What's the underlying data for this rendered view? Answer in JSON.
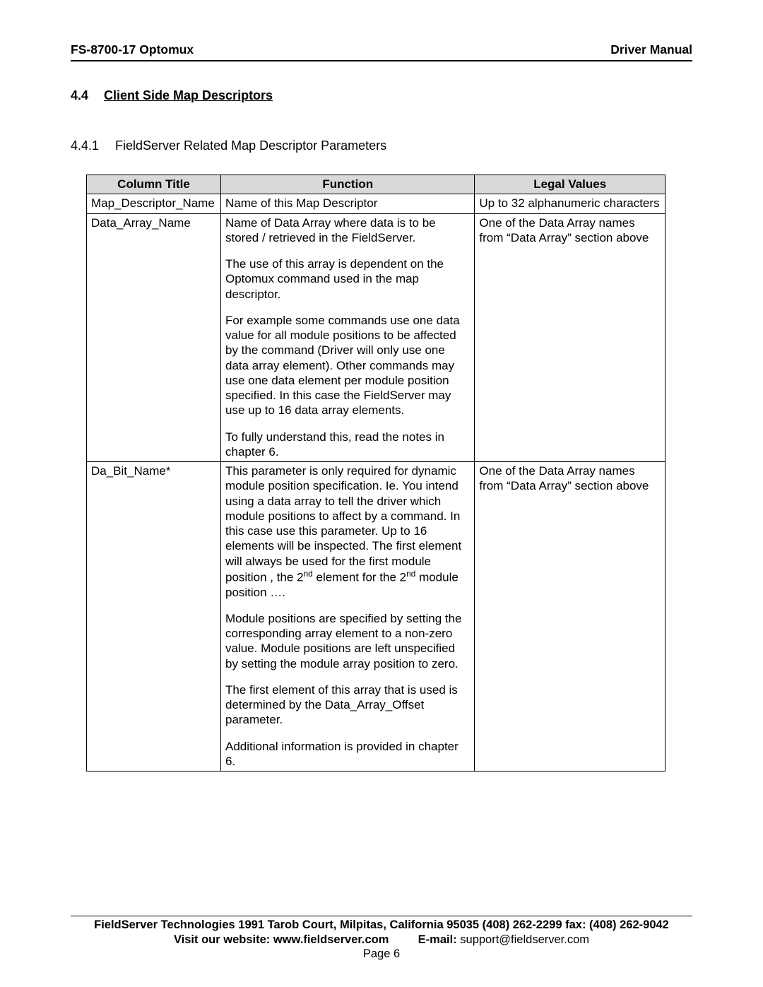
{
  "header": {
    "left": "FS-8700-17 Optomux",
    "right": "Driver Manual"
  },
  "section": {
    "number": "4.4",
    "title": "Client Side Map Descriptors"
  },
  "subsection": {
    "number": "4.4.1",
    "title": "FieldServer Related Map Descriptor Parameters"
  },
  "table": {
    "headers": {
      "col1": "Column Title",
      "col2": "Function",
      "col3": "Legal Values"
    },
    "rows": [
      {
        "title": "Map_Descriptor_Name",
        "func_p1": "Name of this Map Descriptor",
        "legal": "Up to 32 alphanumeric characters"
      },
      {
        "title": "Data_Array_Name",
        "func_p1": "Name of Data Array where data is to be stored / retrieved in the FieldServer.",
        "func_p2": "The use of this array is dependent on the Optomux command used in the map descriptor.",
        "func_p3": "For example some commands use one data value for all module positions to be affected by the command (Driver will only use one data array element). Other commands may use one data element per module position specified. In this case the FieldServer may use up to 16 data array elements.",
        "func_p4": "To fully understand this, read the notes in chapter 6.",
        "legal": "One of the Data Array names from “Data Array” section above"
      },
      {
        "title": "Da_Bit_Name*",
        "func_p1a": "This parameter is only required for dynamic module position specification. Ie. You intend using a data array to tell the driver which module positions to affect by a command.  In this case use this parameter. Up to 16 elements will be inspected. The first element will always be used for the first module position , the 2",
        "func_p1b": " element for the 2",
        "func_p1c": " module position ….",
        "func_p2": "Module positions are specified by setting the corresponding array element to a non-zero value. Module positions are left unspecified by setting the module array position to zero.",
        "func_p3": "The first element of this array that is used is determined by the Data_Array_Offset parameter.",
        "func_p4": "Additional information is provided in chapter 6.",
        "legal": "One of the Data Array names from “Data Array” section above"
      }
    ]
  },
  "footer": {
    "line1": "FieldServer Technologies 1991 Tarob Court, Milpitas, California 95035 (408) 262-2299 fax: (408) 262-9042",
    "website_label": "Visit our website: www.fieldserver.com",
    "email_label": "E-mail:",
    "email_value": "  support@fieldserver.com",
    "page": "Page 6"
  },
  "sup": "nd"
}
